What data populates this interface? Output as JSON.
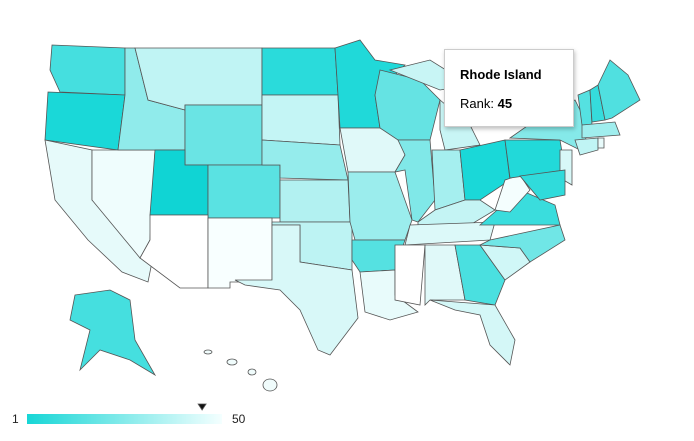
{
  "tooltip": {
    "state": "Rhode Island",
    "label": "Rank:",
    "rank": 45
  },
  "legend": {
    "min": 1,
    "max": 50
  }
}
